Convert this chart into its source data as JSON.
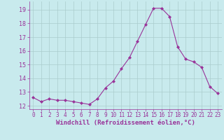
{
  "x": [
    0,
    1,
    2,
    3,
    4,
    5,
    6,
    7,
    8,
    9,
    10,
    11,
    12,
    13,
    14,
    15,
    16,
    17,
    18,
    19,
    20,
    21,
    22,
    23
  ],
  "y": [
    12.6,
    12.3,
    12.5,
    12.4,
    12.4,
    12.3,
    12.2,
    12.1,
    12.5,
    13.3,
    13.8,
    14.7,
    15.5,
    16.7,
    17.9,
    19.1,
    19.1,
    18.5,
    16.3,
    15.4,
    15.2,
    14.8,
    13.4,
    12.9
  ],
  "line_color": "#993399",
  "marker": "D",
  "marker_size": 2.0,
  "bg_color": "#c8eaed",
  "grid_color": "#aacccc",
  "xlabel": "Windchill (Refroidissement éolien,°C)",
  "xlabel_color": "#993399",
  "tick_color": "#993399",
  "ylim": [
    11.75,
    19.6
  ],
  "xlim": [
    -0.5,
    23.5
  ],
  "yticks": [
    12,
    13,
    14,
    15,
    16,
    17,
    18,
    19
  ],
  "xticks": [
    0,
    1,
    2,
    3,
    4,
    5,
    6,
    7,
    8,
    9,
    10,
    11,
    12,
    13,
    14,
    15,
    16,
    17,
    18,
    19,
    20,
    21,
    22,
    23
  ],
  "tick_fontsize": 6.0,
  "xlabel_fontsize": 6.5
}
